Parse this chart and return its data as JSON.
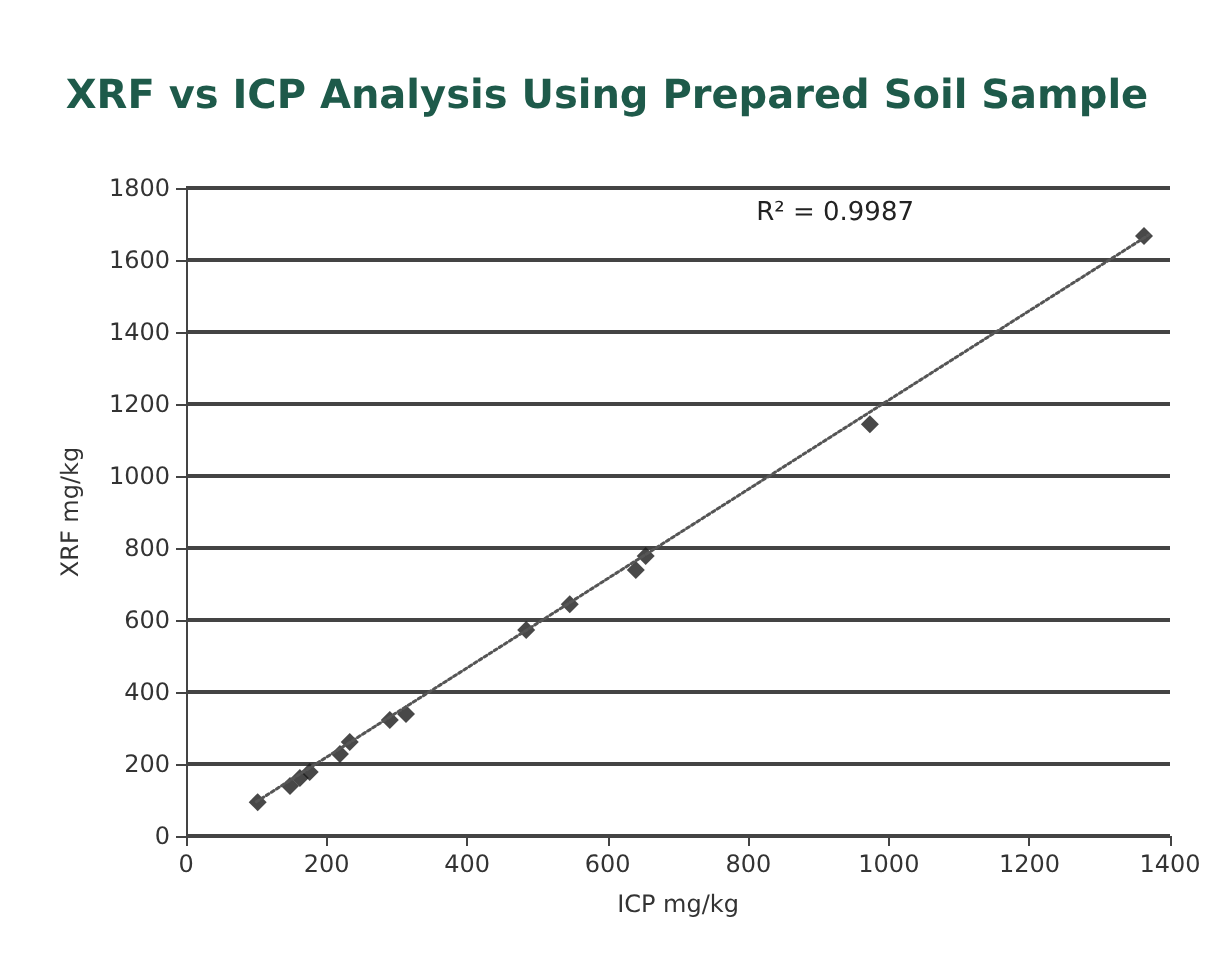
{
  "chart_data": {
    "type": "scatter",
    "title": "XRF vs ICP Analysis Using Prepared Soil Sample",
    "xlabel": "ICP mg/kg",
    "ylabel": "XRF mg/kg",
    "xlim": [
      0,
      1400
    ],
    "xticks": [
      0,
      200,
      400,
      600,
      800,
      1000,
      1200,
      1400
    ],
    "ylim": [
      0,
      1800
    ],
    "yticks": [
      0,
      200,
      400,
      600,
      800,
      1000,
      1200,
      1400,
      1600,
      1800
    ],
    "grid": "y",
    "marker": "diamond",
    "annotations": [
      "R² = 0.9987"
    ],
    "series": [
      {
        "color": "#1a1a1a",
        "x": [
          102,
          148,
          162,
          176,
          219,
          233,
          290,
          313,
          484,
          546,
          640,
          654,
          973,
          1363
        ],
        "values": [
          94,
          139,
          161,
          178,
          228,
          261,
          322,
          339,
          572,
          644,
          739,
          778,
          1144,
          1667
        ]
      },
      {
        "type": "line",
        "color": "#555555",
        "line_style": "dotted",
        "marker": "none",
        "x": [
          100,
          1370
        ],
        "values": [
          95,
          1670
        ]
      }
    ]
  }
}
